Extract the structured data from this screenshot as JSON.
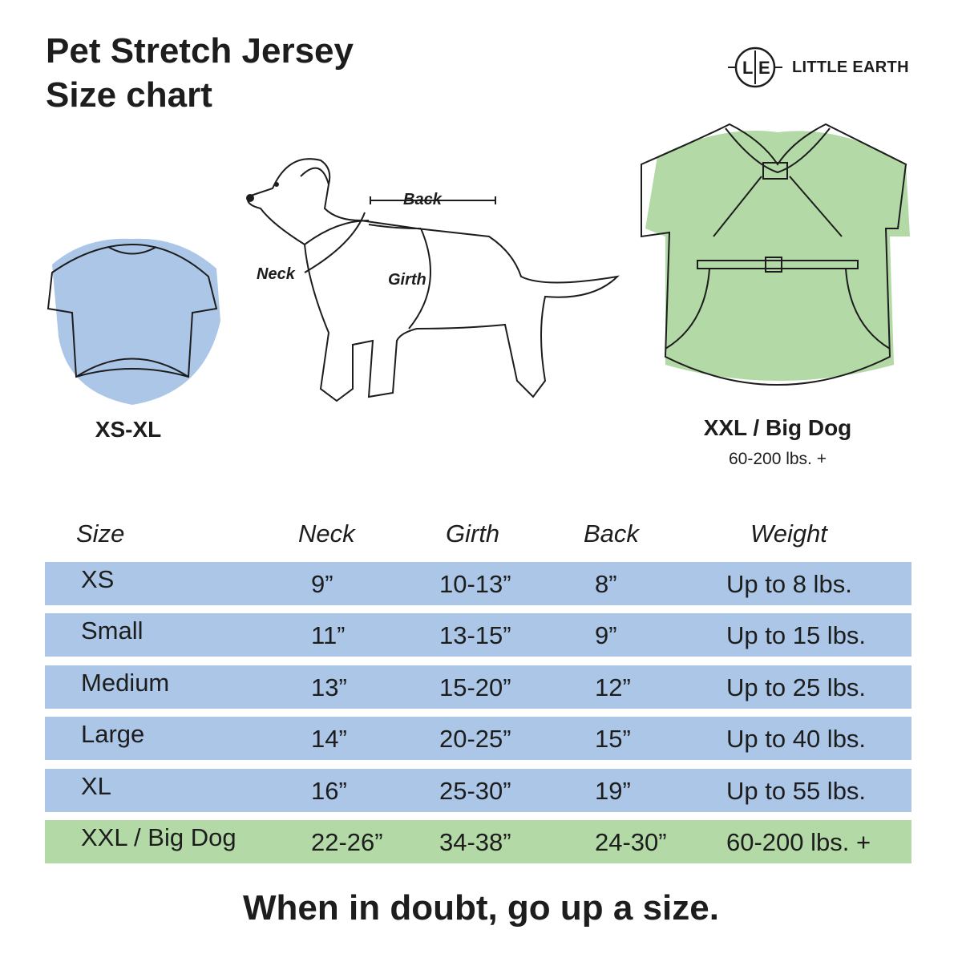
{
  "title_line1": "Pet Stretch Jersey",
  "title_line2": "Size chart",
  "logo": {
    "mark_left": "L",
    "mark_right": "E",
    "name": "LITTLE EARTH"
  },
  "illustrations": {
    "small_shirt_caption": "XS-XL",
    "big_shirt_caption": "XXL / Big Dog",
    "big_shirt_subcaption": "60-200 lbs. +",
    "dog_labels": {
      "back": "Back",
      "neck": "Neck",
      "girth": "Girth"
    }
  },
  "colors": {
    "blue_row": "#abc6e6",
    "green_row": "#b2d9a6",
    "text": "#1d1d1d"
  },
  "table": {
    "headers": [
      "Size",
      "Neck",
      "Girth",
      "Back",
      "Weight"
    ],
    "rows": [
      {
        "size": "XS",
        "neck": "9”",
        "girth": "10-13”",
        "back": "8”",
        "weight": "Up to 8 lbs.",
        "color": "blue"
      },
      {
        "size": "Small",
        "neck": "11”",
        "girth": "13-15”",
        "back": "9”",
        "weight": "Up to 15 lbs.",
        "color": "blue"
      },
      {
        "size": "Medium",
        "neck": "13”",
        "girth": "15-20”",
        "back": "12”",
        "weight": "Up to 25 lbs.",
        "color": "blue"
      },
      {
        "size": "Large",
        "neck": "14”",
        "girth": "20-25”",
        "back": "15”",
        "weight": "Up to 40 lbs.",
        "color": "blue"
      },
      {
        "size": "XL",
        "neck": "16”",
        "girth": "25-30”",
        "back": "19”",
        "weight": "Up to 55 lbs.",
        "color": "blue"
      },
      {
        "size": "XXL / Big Dog",
        "neck": "22-26”",
        "girth": "34-38”",
        "back": "24-30”",
        "weight": "60-200 lbs. +",
        "color": "green"
      }
    ]
  },
  "footer_note": "When in doubt, go up a size."
}
